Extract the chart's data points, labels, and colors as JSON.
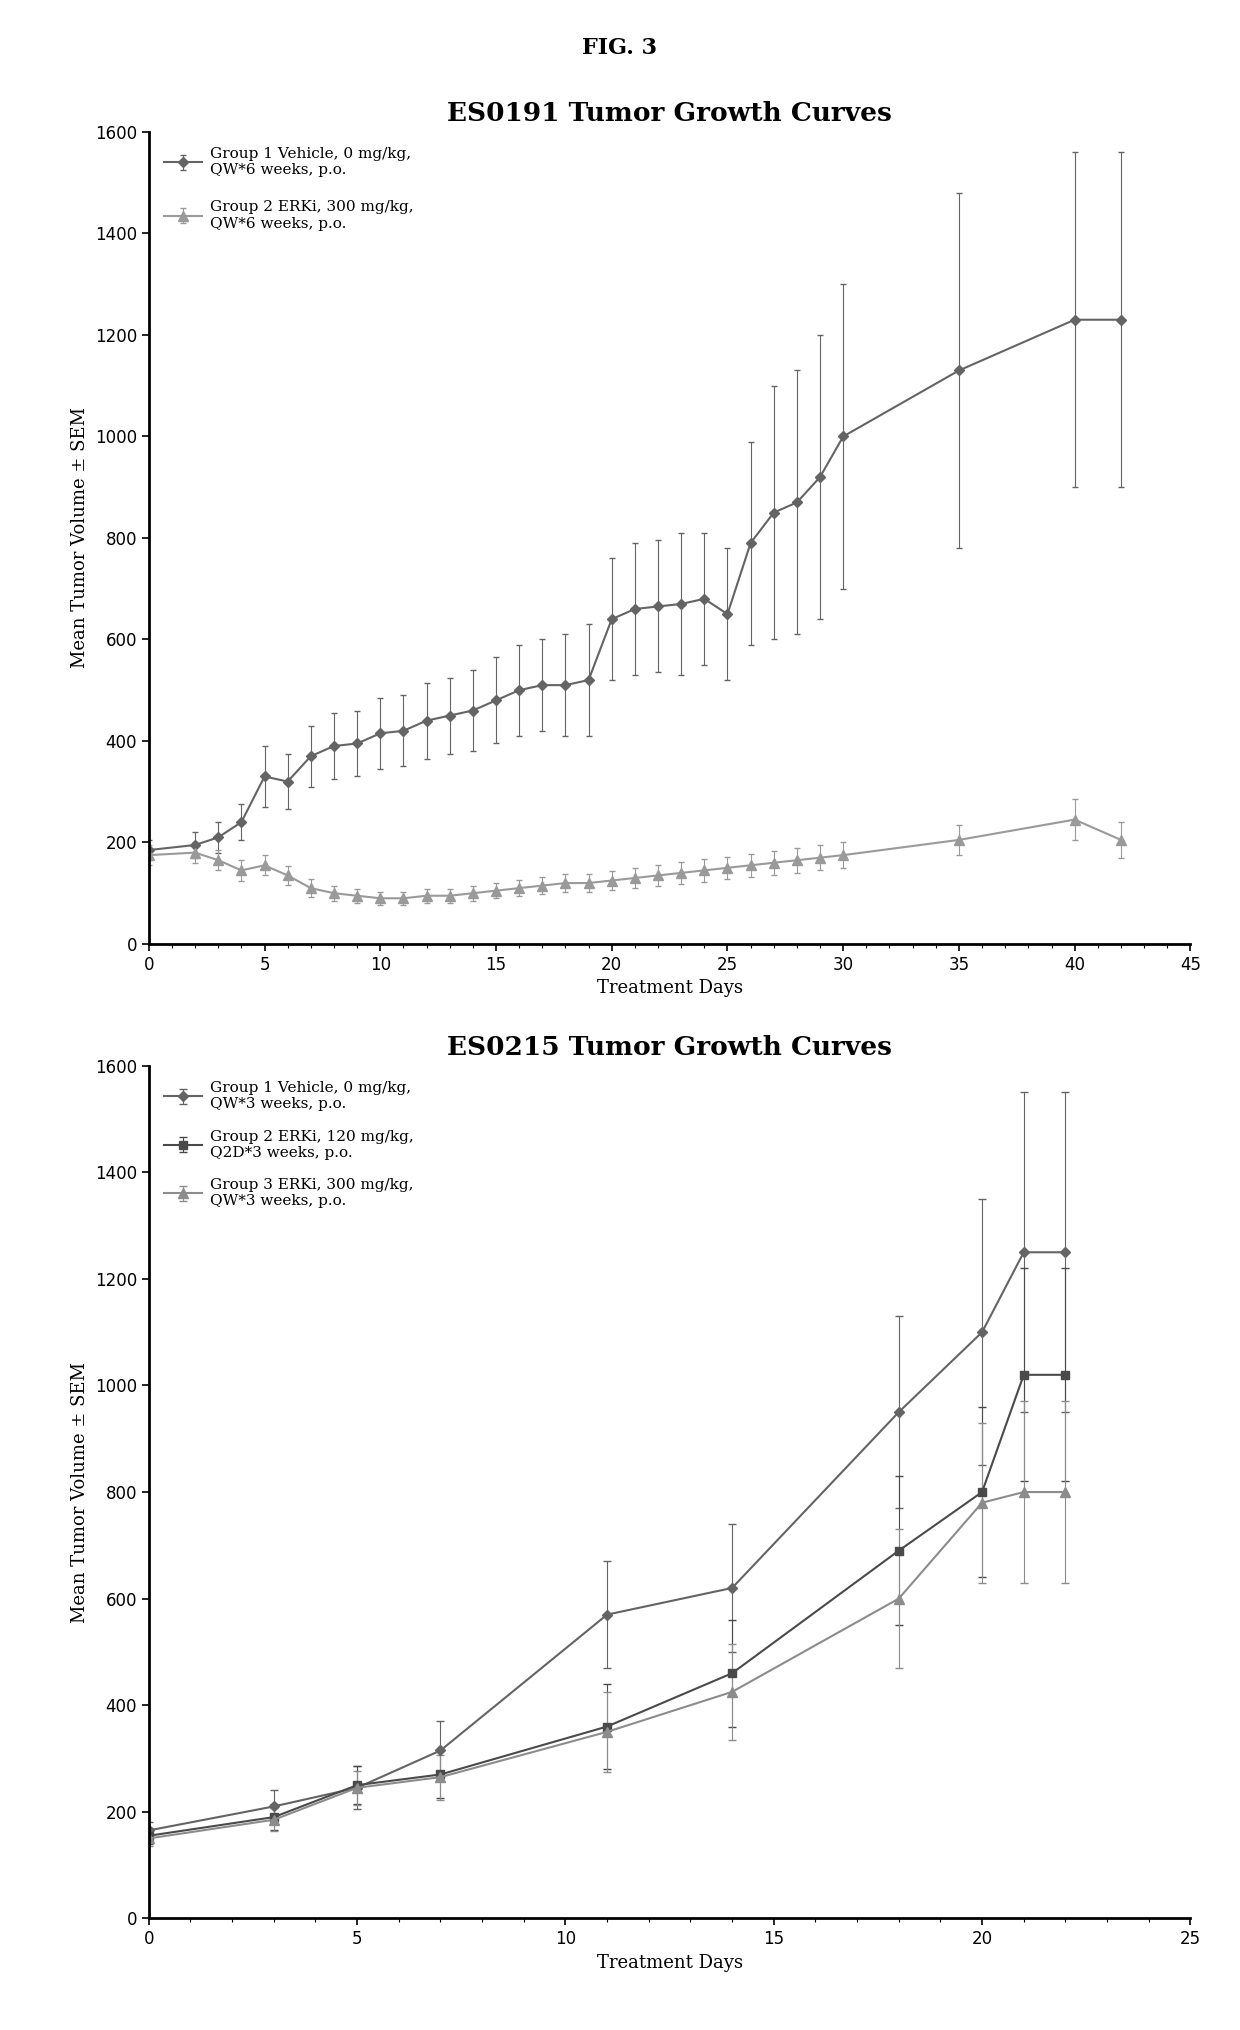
{
  "fig_label": "FIG. 3",
  "plot1": {
    "title": "ES0191 Tumor Growth Curves",
    "xlabel": "Treatment Days",
    "ylabel": "Mean Tumor Volume ± SEM",
    "xlim": [
      0,
      45
    ],
    "ylim": [
      0,
      1600
    ],
    "xticks": [
      0,
      5,
      10,
      15,
      20,
      25,
      30,
      35,
      40,
      45
    ],
    "yticks": [
      0,
      200,
      400,
      600,
      800,
      1000,
      1200,
      1400,
      1600
    ],
    "group1": {
      "label": "Group 1 Vehicle, 0 mg/kg,\nQW*6 weeks, p.o.",
      "x": [
        0,
        2,
        3,
        4,
        5,
        6,
        7,
        8,
        9,
        10,
        11,
        12,
        13,
        14,
        15,
        16,
        17,
        18,
        19,
        20,
        21,
        22,
        23,
        24,
        25,
        26,
        27,
        28,
        29,
        30,
        35,
        40,
        42
      ],
      "y": [
        185,
        195,
        210,
        240,
        330,
        320,
        370,
        390,
        395,
        415,
        420,
        440,
        450,
        460,
        480,
        500,
        510,
        510,
        520,
        640,
        660,
        665,
        670,
        680,
        650,
        790,
        850,
        870,
        920,
        1000,
        1130,
        1230,
        1230
      ],
      "yerr": [
        20,
        25,
        30,
        35,
        60,
        55,
        60,
        65,
        65,
        70,
        70,
        75,
        75,
        80,
        85,
        90,
        90,
        100,
        110,
        120,
        130,
        130,
        140,
        130,
        130,
        200,
        250,
        260,
        280,
        300,
        350,
        330,
        330
      ],
      "color": "#646464",
      "marker": "D",
      "markersize": 5,
      "linewidth": 1.5
    },
    "group2": {
      "label": "Group 2 ERKi, 300 mg/kg,\nQW*6 weeks, p.o.",
      "x": [
        0,
        2,
        3,
        4,
        5,
        6,
        7,
        8,
        9,
        10,
        11,
        12,
        13,
        14,
        15,
        16,
        17,
        18,
        19,
        20,
        21,
        22,
        23,
        24,
        25,
        26,
        27,
        28,
        29,
        30,
        35,
        40,
        42
      ],
      "y": [
        175,
        180,
        165,
        145,
        155,
        135,
        110,
        100,
        95,
        90,
        90,
        95,
        95,
        100,
        105,
        110,
        115,
        120,
        120,
        125,
        130,
        135,
        140,
        145,
        150,
        155,
        160,
        165,
        170,
        175,
        205,
        245,
        205
      ],
      "yerr": [
        20,
        20,
        20,
        20,
        20,
        18,
        18,
        15,
        14,
        13,
        13,
        14,
        14,
        15,
        15,
        16,
        17,
        18,
        18,
        19,
        20,
        20,
        21,
        22,
        22,
        23,
        24,
        25,
        25,
        26,
        30,
        40,
        35
      ],
      "color": "#9a9a9a",
      "marker": "^",
      "markersize": 7,
      "linewidth": 1.5
    }
  },
  "plot2": {
    "title": "ES0215 Tumor Growth Curves",
    "xlabel": "Treatment Days",
    "ylabel": "Mean Tumor Volume ± SEM",
    "xlim": [
      0,
      25
    ],
    "ylim": [
      0,
      1600
    ],
    "xticks": [
      0,
      5,
      10,
      15,
      20,
      25
    ],
    "yticks": [
      0,
      200,
      400,
      600,
      800,
      1000,
      1200,
      1400,
      1600
    ],
    "group1": {
      "label": "Group 1 Vehicle, 0 mg/kg,\nQW*3 weeks, p.o.",
      "x": [
        0,
        3,
        5,
        7,
        11,
        14,
        18,
        20,
        21,
        22
      ],
      "y": [
        165,
        210,
        245,
        315,
        570,
        620,
        950,
        1100,
        1250,
        1250
      ],
      "yerr": [
        15,
        30,
        40,
        55,
        100,
        120,
        180,
        250,
        300,
        300
      ],
      "color": "#646464",
      "marker": "D",
      "markersize": 5,
      "linewidth": 1.5
    },
    "group2": {
      "label": "Group 2 ERKi, 120 mg/kg,\nQ2D*3 weeks, p.o.",
      "x": [
        0,
        3,
        5,
        7,
        11,
        14,
        18,
        20,
        21,
        22
      ],
      "y": [
        155,
        190,
        250,
        270,
        360,
        460,
        690,
        800,
        1020,
        1020
      ],
      "yerr": [
        15,
        25,
        35,
        45,
        80,
        100,
        140,
        160,
        200,
        200
      ],
      "color": "#4a4a4a",
      "marker": "s",
      "markersize": 6,
      "linewidth": 1.5
    },
    "group3": {
      "label": "Group 3 ERKi, 300 mg/kg,\nQW*3 weeks, p.o.",
      "x": [
        0,
        3,
        5,
        7,
        11,
        14,
        18,
        20,
        21,
        22
      ],
      "y": [
        150,
        185,
        245,
        265,
        350,
        425,
        600,
        780,
        800,
        800
      ],
      "yerr": [
        14,
        22,
        32,
        42,
        75,
        90,
        130,
        150,
        170,
        170
      ],
      "color": "#8c8c8c",
      "marker": "^",
      "markersize": 7,
      "linewidth": 1.5
    }
  },
  "background_color": "#ffffff",
  "text_color": "#000000",
  "fig_label_fontsize": 16,
  "title_fontsize": 19,
  "axis_label_fontsize": 13,
  "tick_fontsize": 12,
  "legend_fontsize": 11
}
